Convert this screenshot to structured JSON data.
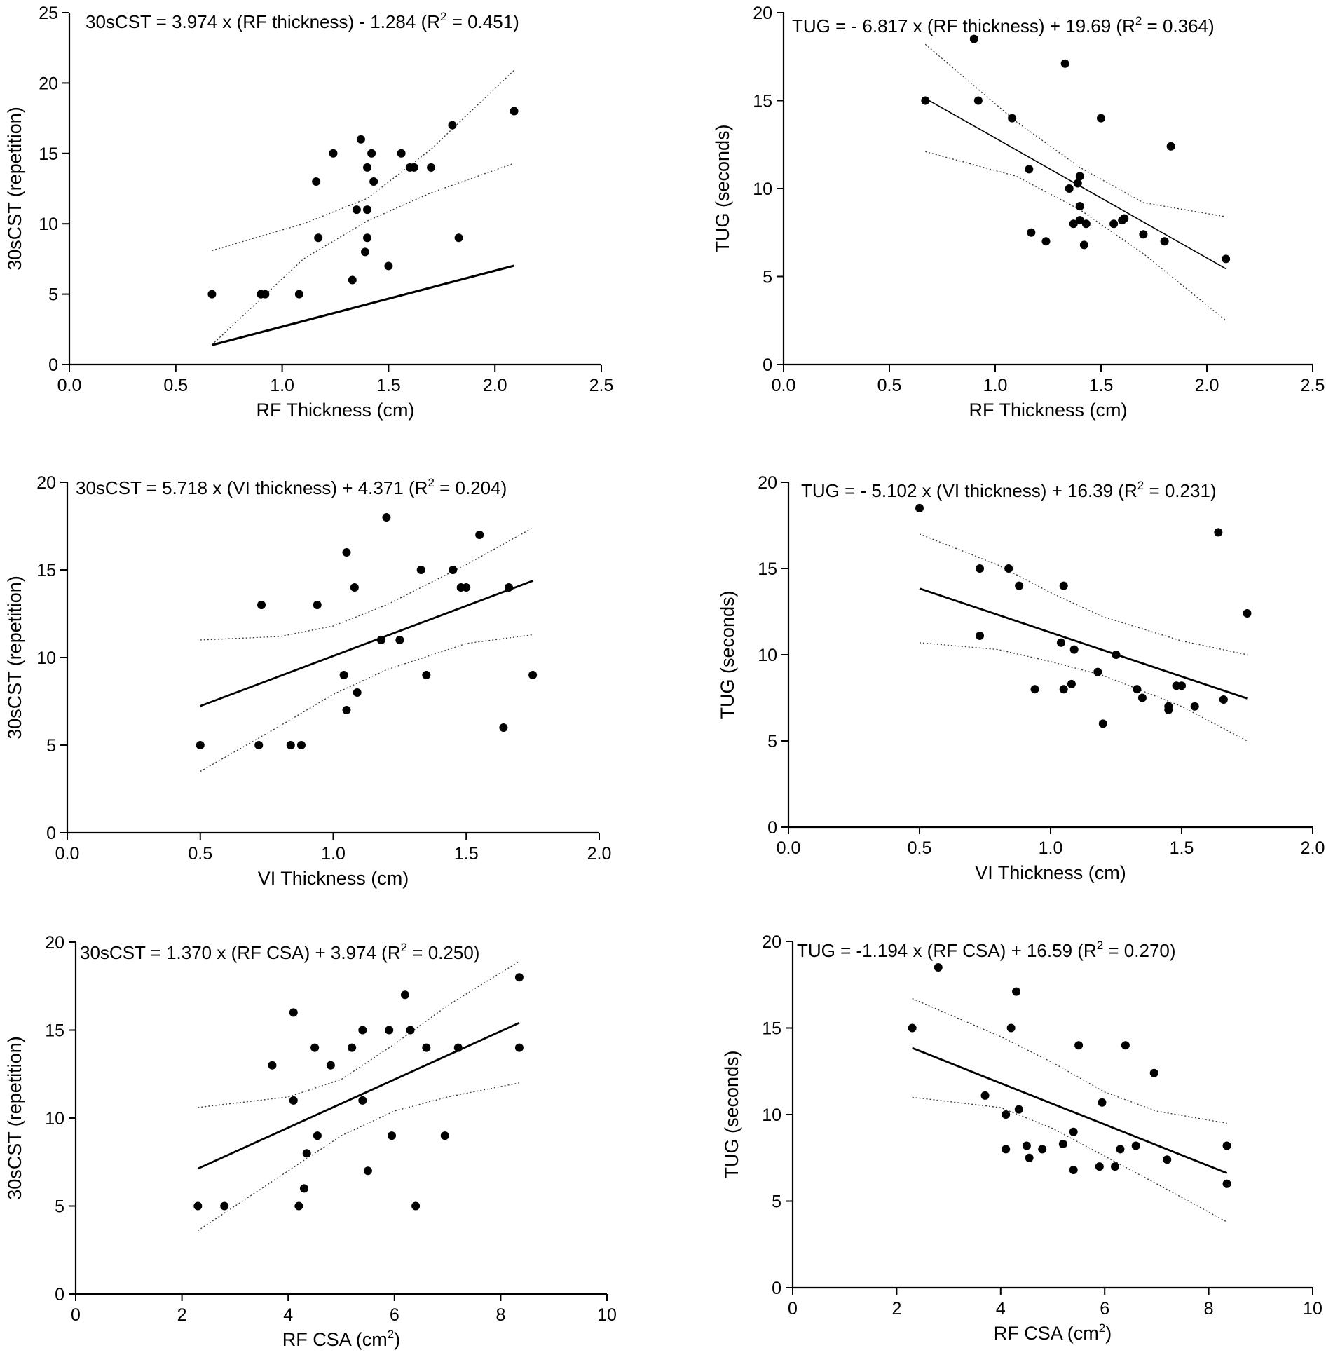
{
  "chart_data": [
    {
      "type": "scatter",
      "xlabel": "RF Thickness (cm)",
      "ylabel": "30sCST (repetition)",
      "equation": {
        "text": "30sCST = 3.974 x (RF thickness) - 1.284",
        "r2_label": "(R",
        "r2_sup": "2",
        "r2_value": " = 0.451)"
      },
      "xlim": [
        0,
        2.5
      ],
      "ylim": [
        0,
        25
      ],
      "xticks": [
        0.0,
        0.5,
        1.0,
        1.5,
        2.0,
        2.5
      ],
      "xtick_labels": [
        "0.0",
        "0.5",
        "1.0",
        "1.5",
        "2.0",
        "2.5"
      ],
      "yticks": [
        0,
        5,
        10,
        15,
        20,
        25
      ],
      "ytick_labels": [
        "0",
        "5",
        "10",
        "15",
        "20",
        "25"
      ],
      "fit": {
        "slope": 3.974,
        "intercept": -1.284,
        "x_range": [
          0.67,
          2.09
        ]
      },
      "ci_upper": [
        [
          0.67,
          8.1
        ],
        [
          1.1,
          10.0
        ],
        [
          1.4,
          11.8
        ],
        [
          1.7,
          15.3
        ],
        [
          2.09,
          20.9
        ]
      ],
      "ci_lower": [
        [
          0.67,
          1.4
        ],
        [
          1.1,
          7.5
        ],
        [
          1.4,
          10.2
        ],
        [
          1.7,
          12.2
        ],
        [
          2.09,
          14.3
        ]
      ],
      "points": [
        [
          0.67,
          5
        ],
        [
          0.9,
          5
        ],
        [
          0.92,
          5
        ],
        [
          1.08,
          5
        ],
        [
          1.16,
          13
        ],
        [
          1.17,
          9
        ],
        [
          1.24,
          15
        ],
        [
          1.33,
          6
        ],
        [
          1.35,
          11
        ],
        [
          1.37,
          16
        ],
        [
          1.39,
          8
        ],
        [
          1.4,
          14
        ],
        [
          1.4,
          11
        ],
        [
          1.4,
          9
        ],
        [
          1.42,
          15
        ],
        [
          1.43,
          13
        ],
        [
          1.5,
          7
        ],
        [
          1.56,
          15
        ],
        [
          1.6,
          14
        ],
        [
          1.62,
          14
        ],
        [
          1.7,
          14
        ],
        [
          1.8,
          17
        ],
        [
          1.83,
          9
        ],
        [
          2.09,
          18
        ]
      ]
    },
    {
      "type": "scatter",
      "xlabel": "RF Thickness (cm)",
      "ylabel": "TUG (seconds)",
      "equation": {
        "text": "TUG = - 6.817 x (RF thickness) + 19.69",
        "r2_label": "(R",
        "r2_sup": "2",
        "r2_value": " = 0.364)"
      },
      "xlim": [
        0,
        2.5
      ],
      "ylim": [
        0,
        20
      ],
      "xticks": [
        0.0,
        0.5,
        1.0,
        1.5,
        2.0,
        2.5
      ],
      "xtick_labels": [
        "0.0",
        "0.5",
        "1.0",
        "1.5",
        "2.0",
        "2.5"
      ],
      "yticks": [
        0,
        5,
        10,
        15,
        20
      ],
      "ytick_labels": [
        "0",
        "5",
        "10",
        "15",
        "20"
      ],
      "fit": {
        "slope": -6.817,
        "intercept": 19.69,
        "x_range": [
          0.67,
          2.09
        ]
      },
      "ci_upper": [
        [
          0.67,
          18.2
        ],
        [
          1.1,
          13.8
        ],
        [
          1.4,
          11.2
        ],
        [
          1.7,
          9.2
        ],
        [
          2.09,
          8.4
        ]
      ],
      "ci_lower": [
        [
          0.67,
          12.1
        ],
        [
          1.1,
          10.7
        ],
        [
          1.4,
          8.8
        ],
        [
          1.7,
          6.3
        ],
        [
          2.09,
          2.5
        ]
      ],
      "points": [
        [
          0.67,
          15
        ],
        [
          0.9,
          18.5
        ],
        [
          0.92,
          15
        ],
        [
          1.08,
          14
        ],
        [
          1.16,
          11.1
        ],
        [
          1.17,
          7.5
        ],
        [
          1.24,
          7
        ],
        [
          1.33,
          17.1
        ],
        [
          1.35,
          10
        ],
        [
          1.37,
          8
        ],
        [
          1.39,
          10.3
        ],
        [
          1.4,
          10.7
        ],
        [
          1.4,
          9
        ],
        [
          1.4,
          8.2
        ],
        [
          1.42,
          6.8
        ],
        [
          1.43,
          8
        ],
        [
          1.5,
          14
        ],
        [
          1.56,
          8
        ],
        [
          1.6,
          8.2
        ],
        [
          1.61,
          8.3
        ],
        [
          1.7,
          7.4
        ],
        [
          1.8,
          7
        ],
        [
          1.83,
          12.4
        ],
        [
          2.09,
          6
        ]
      ]
    },
    {
      "type": "scatter",
      "xlabel": "VI Thickness (cm)",
      "ylabel": "30sCST (repetition)",
      "equation": {
        "text": "30sCST = 5.718 x (VI thickness) + 4.371",
        "r2_label": "(R",
        "r2_sup": "2",
        "r2_value": " = 0.204)"
      },
      "xlim": [
        0,
        2.0
      ],
      "ylim": [
        0,
        20
      ],
      "xticks": [
        0.0,
        0.5,
        1.0,
        1.5,
        2.0
      ],
      "xtick_labels": [
        "0.0",
        "0.5",
        "1.0",
        "1.5",
        "2.0"
      ],
      "yticks": [
        0,
        5,
        10,
        15,
        20
      ],
      "ytick_labels": [
        "0",
        "5",
        "10",
        "15",
        "20"
      ],
      "fit": {
        "slope": 5.718,
        "intercept": 4.371,
        "x_range": [
          0.5,
          1.75
        ]
      },
      "ci_upper": [
        [
          0.5,
          11.0
        ],
        [
          0.8,
          11.2
        ],
        [
          1.0,
          11.8
        ],
        [
          1.2,
          13.0
        ],
        [
          1.5,
          15.3
        ],
        [
          1.75,
          17.4
        ]
      ],
      "ci_lower": [
        [
          0.5,
          3.5
        ],
        [
          0.8,
          6.1
        ],
        [
          1.0,
          7.9
        ],
        [
          1.2,
          9.3
        ],
        [
          1.5,
          10.8
        ],
        [
          1.75,
          11.3
        ]
      ],
      "points": [
        [
          0.5,
          5
        ],
        [
          0.72,
          5
        ],
        [
          0.73,
          13
        ],
        [
          0.84,
          5
        ],
        [
          0.88,
          5
        ],
        [
          0.94,
          13
        ],
        [
          1.04,
          9
        ],
        [
          1.05,
          7
        ],
        [
          1.05,
          16
        ],
        [
          1.08,
          14
        ],
        [
          1.09,
          8
        ],
        [
          1.18,
          11
        ],
        [
          1.2,
          18
        ],
        [
          1.25,
          11
        ],
        [
          1.33,
          15
        ],
        [
          1.35,
          9
        ],
        [
          1.45,
          15
        ],
        [
          1.48,
          14
        ],
        [
          1.5,
          14
        ],
        [
          1.55,
          17
        ],
        [
          1.64,
          6
        ],
        [
          1.66,
          14
        ],
        [
          1.75,
          9
        ]
      ]
    },
    {
      "type": "scatter",
      "xlabel": "VI Thickness (cm)",
      "ylabel": "TUG (seconds)",
      "equation": {
        "text": "TUG = - 5.102 x (VI thickness) + 16.39",
        "r2_label": "(R",
        "r2_sup": "2",
        "r2_value": " = 0.231)"
      },
      "xlim": [
        0,
        2.0
      ],
      "ylim": [
        0,
        20
      ],
      "xticks": [
        0.0,
        0.5,
        1.0,
        1.5,
        2.0
      ],
      "xtick_labels": [
        "0.0",
        "0.5",
        "1.0",
        "1.5",
        "2.0"
      ],
      "yticks": [
        0,
        5,
        10,
        15,
        20
      ],
      "ytick_labels": [
        "0",
        "5",
        "10",
        "15",
        "20"
      ],
      "fit": {
        "slope": -5.102,
        "intercept": 16.39,
        "x_range": [
          0.5,
          1.75
        ]
      },
      "ci_upper": [
        [
          0.5,
          17.0
        ],
        [
          0.8,
          15.2
        ],
        [
          1.0,
          13.6
        ],
        [
          1.2,
          12.2
        ],
        [
          1.5,
          10.8
        ],
        [
          1.75,
          10.0
        ]
      ],
      "ci_lower": [
        [
          0.5,
          10.7
        ],
        [
          0.8,
          10.3
        ],
        [
          1.0,
          9.6
        ],
        [
          1.2,
          8.8
        ],
        [
          1.5,
          7.0
        ],
        [
          1.75,
          5.0
        ]
      ],
      "points": [
        [
          0.5,
          18.5
        ],
        [
          0.73,
          15
        ],
        [
          0.73,
          11.1
        ],
        [
          0.84,
          15
        ],
        [
          0.88,
          14
        ],
        [
          0.94,
          8
        ],
        [
          1.04,
          10.7
        ],
        [
          1.05,
          14
        ],
        [
          1.05,
          8
        ],
        [
          1.08,
          8.3
        ],
        [
          1.09,
          10.3
        ],
        [
          1.18,
          9
        ],
        [
          1.2,
          6
        ],
        [
          1.25,
          10
        ],
        [
          1.33,
          8
        ],
        [
          1.35,
          7.5
        ],
        [
          1.45,
          7
        ],
        [
          1.45,
          6.8
        ],
        [
          1.48,
          8.2
        ],
        [
          1.5,
          8.2
        ],
        [
          1.55,
          7
        ],
        [
          1.64,
          17.1
        ],
        [
          1.66,
          7.4
        ],
        [
          1.75,
          12.4
        ]
      ]
    },
    {
      "type": "scatter",
      "xlabel": "RF CSA (cm",
      "xlabel_sup": "2",
      "xlabel_end": ")",
      "ylabel": "30sCST (repetition)",
      "equation": {
        "text": "30sCST = 1.370 x (RF CSA) + 3.974",
        "r2_label": "(R",
        "r2_sup": "2",
        "r2_value": " = 0.250)"
      },
      "xlim": [
        0,
        10
      ],
      "ylim": [
        0,
        20
      ],
      "xticks": [
        0,
        2,
        4,
        6,
        8,
        10
      ],
      "xtick_labels": [
        "0",
        "2",
        "4",
        "6",
        "8",
        "10"
      ],
      "yticks": [
        0,
        5,
        10,
        15,
        20
      ],
      "ytick_labels": [
        "0",
        "5",
        "10",
        "15",
        "20"
      ],
      "fit": {
        "slope": 1.37,
        "intercept": 3.974,
        "x_range": [
          2.3,
          8.35
        ]
      },
      "ci_upper": [
        [
          2.3,
          10.6
        ],
        [
          4,
          11.2
        ],
        [
          5,
          12.2
        ],
        [
          6,
          14.2
        ],
        [
          7,
          16.4
        ],
        [
          8.35,
          18.9
        ]
      ],
      "ci_lower": [
        [
          2.3,
          3.6
        ],
        [
          4,
          7.0
        ],
        [
          5,
          9.0
        ],
        [
          6,
          10.4
        ],
        [
          7,
          11.2
        ],
        [
          8.35,
          12.0
        ]
      ],
      "points": [
        [
          2.3,
          5
        ],
        [
          2.8,
          5
        ],
        [
          3.7,
          13
        ],
        [
          4.1,
          11
        ],
        [
          4.1,
          16
        ],
        [
          4.2,
          5
        ],
        [
          4.3,
          6
        ],
        [
          4.35,
          8
        ],
        [
          4.5,
          14
        ],
        [
          4.55,
          9
        ],
        [
          4.8,
          13
        ],
        [
          5.2,
          14
        ],
        [
          5.4,
          11
        ],
        [
          5.4,
          15
        ],
        [
          5.5,
          7
        ],
        [
          5.9,
          15
        ],
        [
          5.95,
          9
        ],
        [
          6.2,
          17
        ],
        [
          6.3,
          15
        ],
        [
          6.4,
          5
        ],
        [
          6.6,
          14
        ],
        [
          6.95,
          9
        ],
        [
          7.2,
          14
        ],
        [
          8.35,
          18
        ],
        [
          8.35,
          14
        ]
      ]
    },
    {
      "type": "scatter",
      "xlabel": "RF CSA (cm",
      "xlabel_sup": "2",
      "xlabel_end": ")",
      "ylabel": "TUG (seconds)",
      "equation": {
        "text": "TUG = -1.194 x (RF CSA) + 16.59",
        "r2_label": "(R",
        "r2_sup": "2",
        "r2_value": " = 0.270)"
      },
      "xlim": [
        0,
        10
      ],
      "ylim": [
        0,
        20
      ],
      "xticks": [
        0,
        2,
        4,
        6,
        8,
        10
      ],
      "xtick_labels": [
        "0",
        "2",
        "4",
        "6",
        "8",
        "10"
      ],
      "yticks": [
        0,
        5,
        10,
        15,
        20
      ],
      "ytick_labels": [
        "0",
        "5",
        "10",
        "15",
        "20"
      ],
      "fit": {
        "slope": -1.194,
        "intercept": 16.59,
        "x_range": [
          2.3,
          8.35
        ]
      },
      "ci_upper": [
        [
          2.3,
          16.7
        ],
        [
          4,
          14.5
        ],
        [
          5,
          13.0
        ],
        [
          6,
          11.3
        ],
        [
          7,
          10.2
        ],
        [
          8.35,
          9.5
        ]
      ],
      "ci_lower": [
        [
          2.3,
          11.0
        ],
        [
          4,
          10.4
        ],
        [
          5,
          9.2
        ],
        [
          6,
          7.6
        ],
        [
          7,
          6.0
        ],
        [
          8.35,
          3.8
        ]
      ],
      "points": [
        [
          2.3,
          15
        ],
        [
          2.8,
          18.5
        ],
        [
          3.7,
          11.1
        ],
        [
          4.1,
          10
        ],
        [
          4.1,
          8
        ],
        [
          4.2,
          15
        ],
        [
          4.3,
          17.1
        ],
        [
          4.35,
          10.3
        ],
        [
          4.5,
          8.2
        ],
        [
          4.55,
          7.5
        ],
        [
          4.8,
          8
        ],
        [
          5.2,
          8.3
        ],
        [
          5.4,
          9
        ],
        [
          5.4,
          6.8
        ],
        [
          5.5,
          14
        ],
        [
          5.9,
          7
        ],
        [
          5.95,
          10.7
        ],
        [
          6.2,
          7
        ],
        [
          6.3,
          8
        ],
        [
          6.4,
          14
        ],
        [
          6.6,
          8.2
        ],
        [
          6.95,
          12.4
        ],
        [
          7.2,
          7.4
        ],
        [
          8.35,
          8.2
        ],
        [
          8.35,
          6
        ]
      ]
    }
  ]
}
